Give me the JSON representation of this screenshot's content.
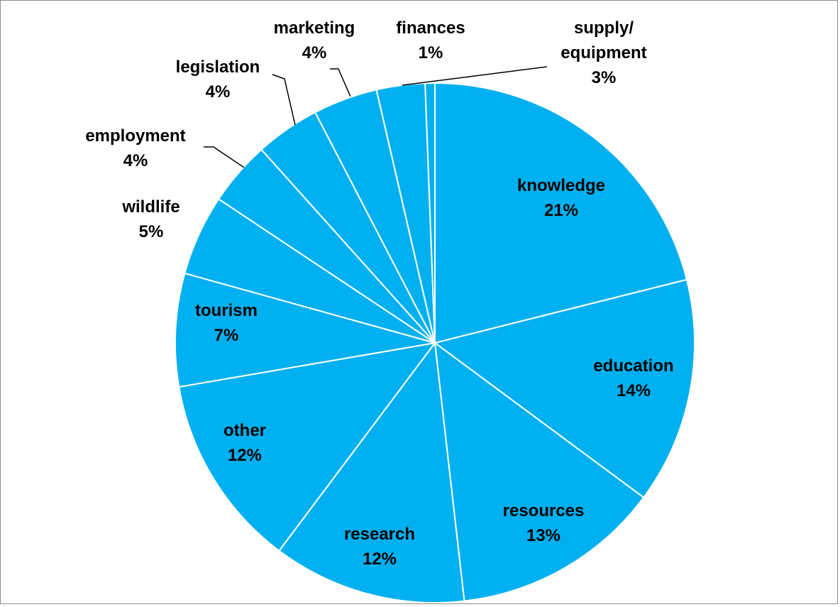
{
  "chart_data": {
    "type": "pie",
    "title": "",
    "slices": [
      {
        "label": "knowledge",
        "pct_label": "21%",
        "value": 21
      },
      {
        "label": "education",
        "pct_label": "14%",
        "value": 14
      },
      {
        "label": "resources",
        "pct_label": "13%",
        "value": 13
      },
      {
        "label": "research",
        "pct_label": "12%",
        "value": 12
      },
      {
        "label": "other",
        "pct_label": "12%",
        "value": 12
      },
      {
        "label": "tourism",
        "pct_label": "7%",
        "value": 7
      },
      {
        "label": "wildlife",
        "pct_label": "5%",
        "value": 5
      },
      {
        "label": "employment",
        "pct_label": "4%",
        "value": 4
      },
      {
        "label": "legislation",
        "pct_label": "4%",
        "value": 4
      },
      {
        "label": "marketing",
        "pct_label": "4%",
        "value": 4
      },
      {
        "label": "supply/ equipment",
        "label_lines": [
          "supply/",
          "equipment"
        ],
        "pct_label": "3%",
        "value": 3
      },
      {
        "label": "finances",
        "pct_label": "1%",
        "value": 0.6
      }
    ],
    "slice_color": "#00b0f0",
    "separator_color": "#ffffff",
    "legend": "none",
    "data_labels": "category name and percentage"
  }
}
